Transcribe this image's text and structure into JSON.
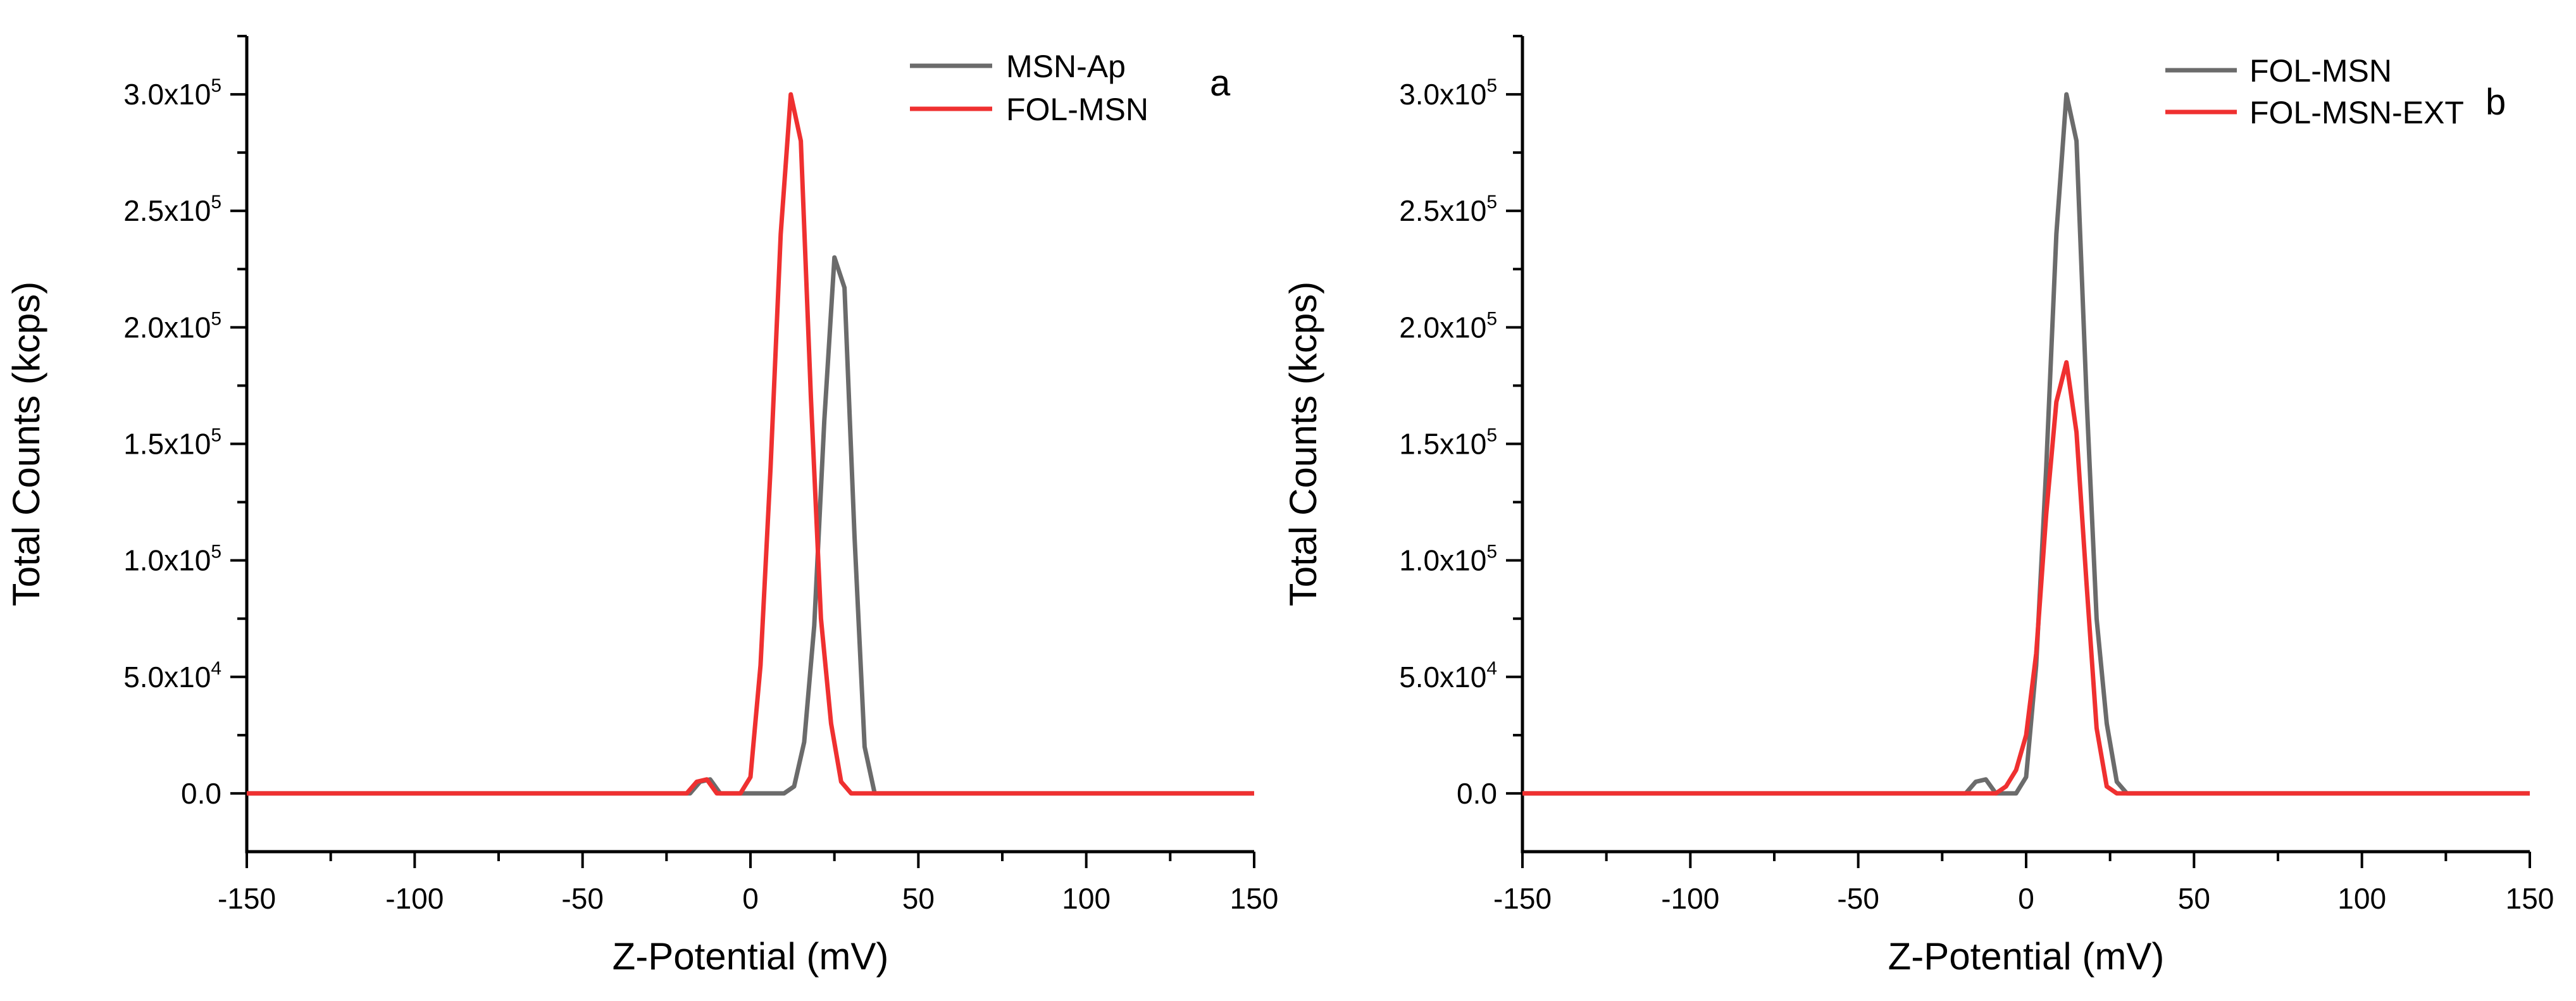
{
  "chart_data": [
    {
      "type": "line",
      "panel_label": "a",
      "xlabel": "Z-Potential (mV)",
      "ylabel": "Total Counts (kcps)",
      "xlim": [
        -150,
        150
      ],
      "ylim": [
        -25000,
        325000
      ],
      "xticks": [
        -150,
        -100,
        -50,
        0,
        50,
        100,
        150
      ],
      "yticks": [
        0,
        50000,
        100000,
        150000,
        200000,
        250000,
        300000
      ],
      "ytick_labels": [
        {
          "mant": "0.0",
          "exp": ""
        },
        {
          "mant": "5.0x10",
          "exp": "4"
        },
        {
          "mant": "1.0x10",
          "exp": "5"
        },
        {
          "mant": "1.5x10",
          "exp": "5"
        },
        {
          "mant": "2.0x10",
          "exp": "5"
        },
        {
          "mant": "2.5x10",
          "exp": "5"
        },
        {
          "mant": "3.0x10",
          "exp": "5"
        }
      ],
      "legend_position": "top-right",
      "series": [
        {
          "name": "MSN-Ap",
          "color": "#6b6b6b",
          "points": [
            [
              -150,
              0
            ],
            [
              -18,
              0
            ],
            [
              -15,
              5000
            ],
            [
              -12,
              6000
            ],
            [
              -9,
              0
            ],
            [
              10,
              0
            ],
            [
              13,
              3000
            ],
            [
              16,
              22000
            ],
            [
              19,
              72000
            ],
            [
              22,
              160000
            ],
            [
              25,
              230000
            ],
            [
              28,
              217000
            ],
            [
              31,
              110000
            ],
            [
              34,
              20000
            ],
            [
              37,
              0
            ],
            [
              150,
              0
            ]
          ]
        },
        {
          "name": "FOL-MSN",
          "color": "#ef3030",
          "points": [
            [
              -150,
              0
            ],
            [
              -19,
              0
            ],
            [
              -16,
              5000
            ],
            [
              -13,
              6000
            ],
            [
              -10,
              0
            ],
            [
              -3,
              0
            ],
            [
              0,
              7000
            ],
            [
              3,
              55000
            ],
            [
              6,
              140000
            ],
            [
              9,
              240000
            ],
            [
              12,
              300000
            ],
            [
              15,
              280000
            ],
            [
              18,
              170000
            ],
            [
              21,
              75000
            ],
            [
              24,
              30000
            ],
            [
              27,
              5000
            ],
            [
              30,
              0
            ],
            [
              150,
              0
            ]
          ]
        }
      ]
    },
    {
      "type": "line",
      "panel_label": "b",
      "xlabel": "Z-Potential (mV)",
      "ylabel": "Total Counts (kcps)",
      "xlim": [
        -150,
        150
      ],
      "ylim": [
        -25000,
        325000
      ],
      "xticks": [
        -150,
        -100,
        -50,
        0,
        50,
        100,
        150
      ],
      "yticks": [
        0,
        50000,
        100000,
        150000,
        200000,
        250000,
        300000
      ],
      "ytick_labels": [
        {
          "mant": "0.0",
          "exp": ""
        },
        {
          "mant": "5.0x10",
          "exp": "4"
        },
        {
          "mant": "1.0x10",
          "exp": "5"
        },
        {
          "mant": "1.5x10",
          "exp": "5"
        },
        {
          "mant": "2.0x10",
          "exp": "5"
        },
        {
          "mant": "2.5x10",
          "exp": "5"
        },
        {
          "mant": "3.0x10",
          "exp": "5"
        }
      ],
      "legend_position": "top-right",
      "series": [
        {
          "name": "FOL-MSN",
          "color": "#6b6b6b",
          "points": [
            [
              -150,
              0
            ],
            [
              -18,
              0
            ],
            [
              -15,
              5000
            ],
            [
              -12,
              6000
            ],
            [
              -9,
              0
            ],
            [
              -3,
              0
            ],
            [
              0,
              7000
            ],
            [
              3,
              55000
            ],
            [
              6,
              140000
            ],
            [
              9,
              240000
            ],
            [
              12,
              300000
            ],
            [
              15,
              280000
            ],
            [
              18,
              170000
            ],
            [
              21,
              75000
            ],
            [
              24,
              30000
            ],
            [
              27,
              5000
            ],
            [
              30,
              0
            ],
            [
              150,
              0
            ]
          ]
        },
        {
          "name": "FOL-MSN-EXT",
          "color": "#ef3030",
          "points": [
            [
              -150,
              0
            ],
            [
              -9,
              0
            ],
            [
              -6,
              3000
            ],
            [
              -3,
              10000
            ],
            [
              0,
              25000
            ],
            [
              3,
              60000
            ],
            [
              6,
              120000
            ],
            [
              9,
              168000
            ],
            [
              12,
              185000
            ],
            [
              15,
              155000
            ],
            [
              18,
              90000
            ],
            [
              21,
              28000
            ],
            [
              24,
              3000
            ],
            [
              27,
              0
            ],
            [
              150,
              0
            ]
          ]
        }
      ]
    }
  ]
}
